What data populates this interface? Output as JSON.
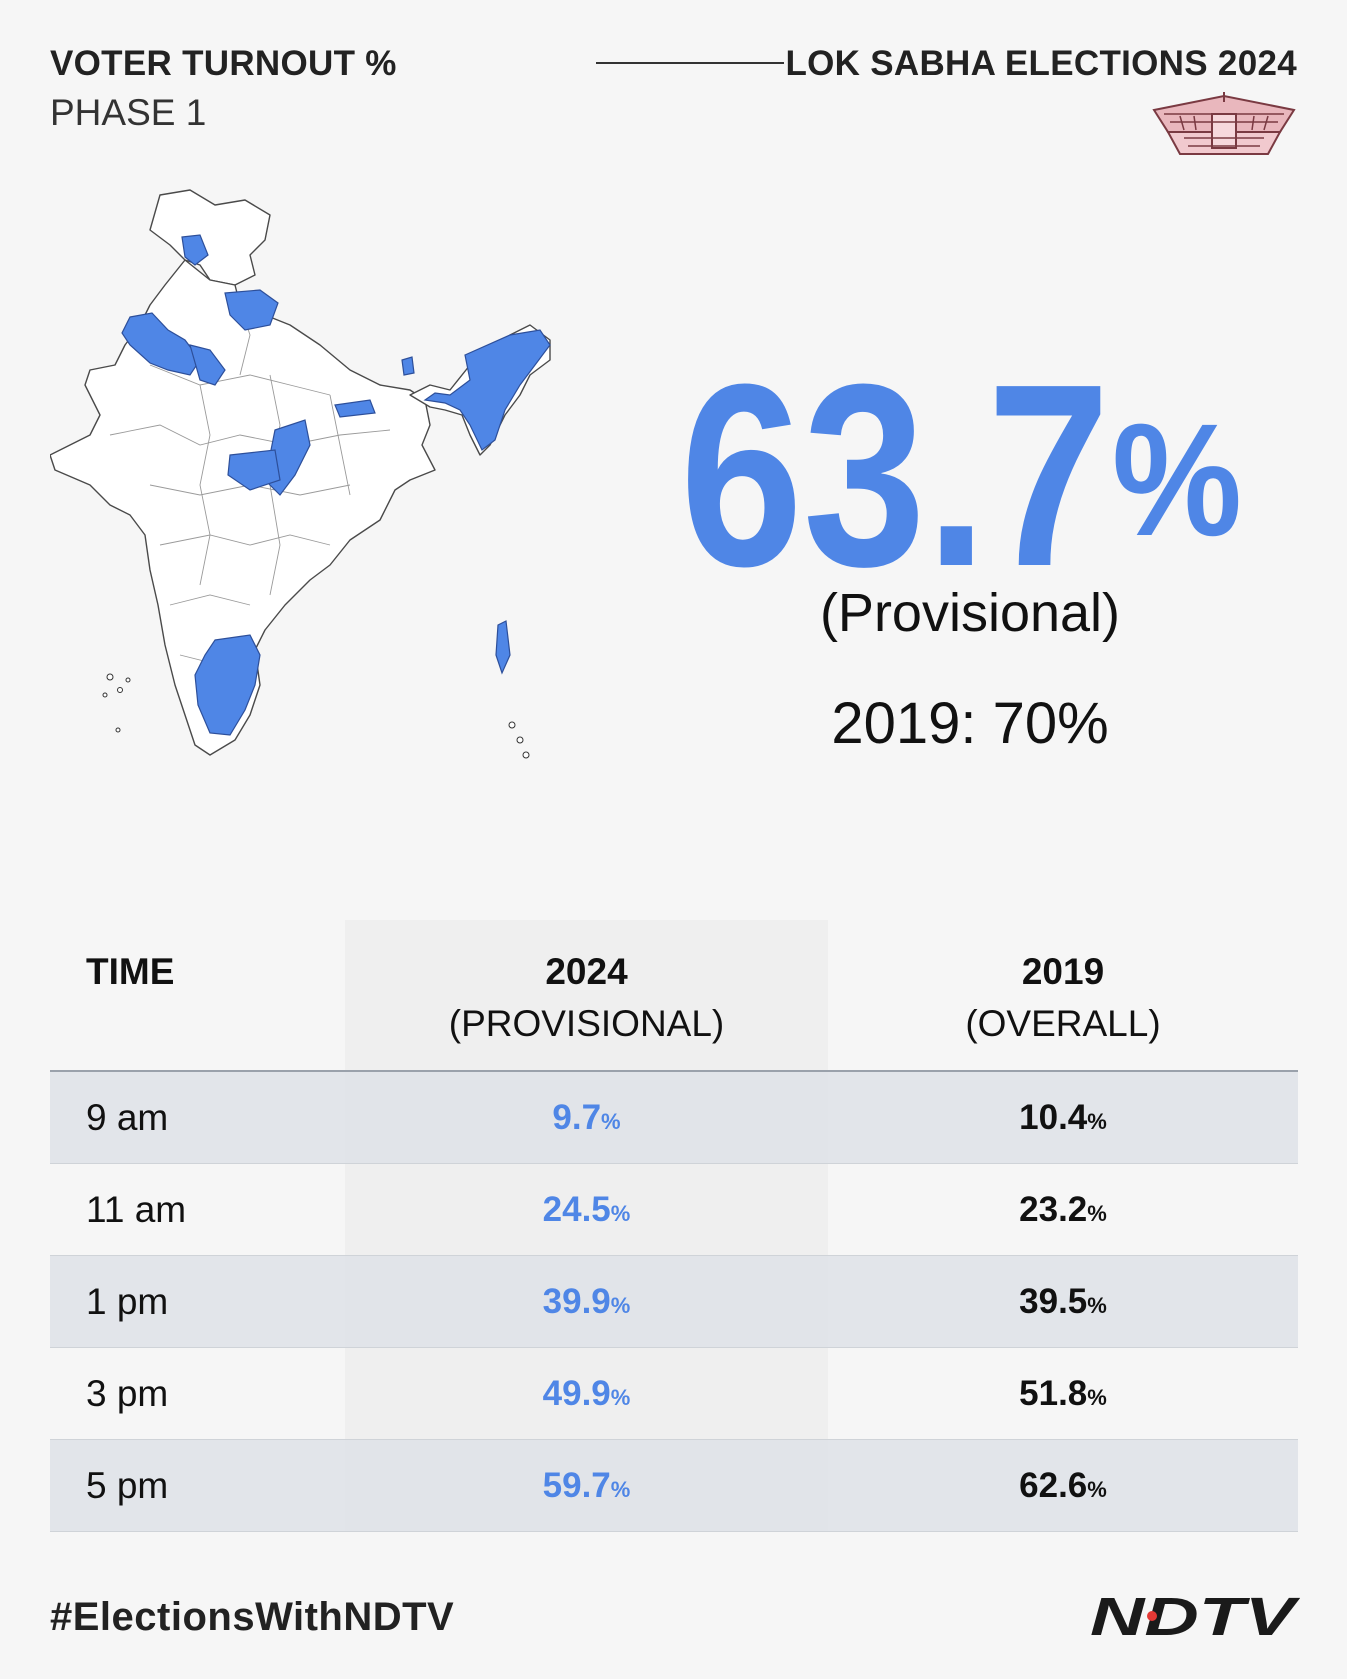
{
  "header": {
    "title": "VOTER TURNOUT %",
    "phase": "PHASE 1",
    "election": "LOK SABHA ELECTIONS 2024"
  },
  "headline": {
    "turnout": "63.7%",
    "turnout_number": "63.7",
    "turnout_sign": "%",
    "status": "(Provisional)",
    "comparison": "2019: 70%"
  },
  "map": {
    "highlight_color": "#4f86e6"
  },
  "table": {
    "headers": {
      "time": "TIME",
      "y2024_line1": "2024",
      "y2024_line2": "(PROVISIONAL)",
      "y2019_line1": "2019",
      "y2019_line2": "(OVERALL)"
    },
    "rows": [
      {
        "time": "9 am",
        "v2024": "9.7",
        "v2019": "10.4"
      },
      {
        "time": "11 am",
        "v2024": "24.5",
        "v2019": "23.2"
      },
      {
        "time": "1 pm",
        "v2024": "39.9",
        "v2019": "39.5"
      },
      {
        "time": "3 pm",
        "v2024": "49.9",
        "v2019": "51.8"
      },
      {
        "time": "5 pm",
        "v2024": "59.7",
        "v2019": "62.6"
      }
    ],
    "pct_sign": "%"
  },
  "footer": {
    "hashtag": "#ElectionsWithNDTV",
    "logo_text": "NDTV"
  },
  "colors": {
    "accent": "#4f86e6",
    "background": "#f6f6f6",
    "logo_dot": "#e53935"
  }
}
